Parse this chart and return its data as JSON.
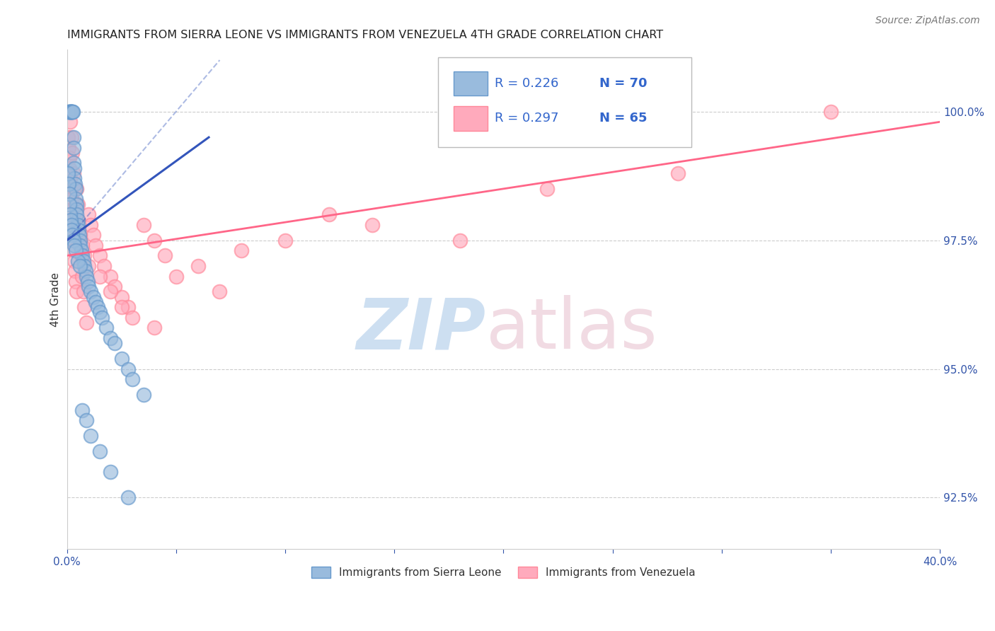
{
  "title": "IMMIGRANTS FROM SIERRA LEONE VS IMMIGRANTS FROM VENEZUELA 4TH GRADE CORRELATION CHART",
  "source": "Source: ZipAtlas.com",
  "ylabel": "4th Grade",
  "yticks": [
    92.5,
    95.0,
    97.5,
    100.0
  ],
  "ytick_labels": [
    "92.5%",
    "95.0%",
    "97.5%",
    "100.0%"
  ],
  "xlim": [
    0.0,
    40.0
  ],
  "ylim": [
    91.5,
    101.2
  ],
  "blue_color": "#99BBDD",
  "pink_color": "#FFAABC",
  "blue_edge_color": "#6699CC",
  "pink_edge_color": "#FF8899",
  "blue_line_color": "#3355BB",
  "pink_line_color": "#FF6688",
  "dashed_line_color": "#AAAACC",
  "legend_R_color": "#3366CC",
  "legend_N_color": "#3366CC",
  "watermark_zip_color": "#C8DCF0",
  "watermark_atlas_color": "#F0D8E0",
  "blue_scatter_x": [
    0.05,
    0.1,
    0.12,
    0.15,
    0.15,
    0.18,
    0.2,
    0.2,
    0.22,
    0.25,
    0.25,
    0.28,
    0.3,
    0.3,
    0.32,
    0.35,
    0.35,
    0.38,
    0.4,
    0.4,
    0.42,
    0.45,
    0.45,
    0.5,
    0.5,
    0.52,
    0.55,
    0.6,
    0.6,
    0.65,
    0.7,
    0.75,
    0.8,
    0.85,
    0.9,
    0.95,
    1.0,
    1.1,
    1.2,
    1.3,
    1.4,
    1.5,
    1.6,
    1.8,
    2.0,
    2.2,
    2.5,
    2.8,
    3.0,
    3.5,
    0.05,
    0.08,
    0.1,
    0.12,
    0.15,
    0.18,
    0.2,
    0.22,
    0.25,
    0.3,
    0.35,
    0.4,
    0.5,
    0.6,
    0.7,
    0.9,
    1.1,
    1.5,
    2.0,
    2.8
  ],
  "blue_scatter_y": [
    100.0,
    100.0,
    100.0,
    100.0,
    100.0,
    100.0,
    100.0,
    100.0,
    100.0,
    100.0,
    100.0,
    100.0,
    99.5,
    99.3,
    99.0,
    98.9,
    98.7,
    98.6,
    98.5,
    98.3,
    98.2,
    98.1,
    98.0,
    97.9,
    97.8,
    97.7,
    97.6,
    97.5,
    97.4,
    97.3,
    97.2,
    97.1,
    97.0,
    96.9,
    96.8,
    96.7,
    96.6,
    96.5,
    96.4,
    96.3,
    96.2,
    96.1,
    96.0,
    95.8,
    95.6,
    95.5,
    95.2,
    95.0,
    94.8,
    94.5,
    98.8,
    98.6,
    98.4,
    98.2,
    98.0,
    97.9,
    97.8,
    97.7,
    97.6,
    97.5,
    97.4,
    97.3,
    97.1,
    97.0,
    94.2,
    94.0,
    93.7,
    93.4,
    93.0,
    92.5
  ],
  "pink_scatter_x": [
    0.05,
    0.08,
    0.1,
    0.12,
    0.15,
    0.18,
    0.2,
    0.22,
    0.25,
    0.28,
    0.3,
    0.32,
    0.35,
    0.38,
    0.4,
    0.42,
    0.45,
    0.5,
    0.55,
    0.6,
    0.65,
    0.7,
    0.75,
    0.8,
    0.9,
    1.0,
    1.1,
    1.2,
    1.3,
    1.5,
    1.7,
    2.0,
    2.2,
    2.5,
    2.8,
    3.0,
    3.5,
    4.0,
    4.5,
    5.0,
    6.0,
    7.0,
    8.0,
    10.0,
    12.0,
    14.0,
    18.0,
    22.0,
    28.0,
    35.0,
    0.15,
    0.2,
    0.25,
    0.3,
    0.35,
    0.4,
    0.5,
    0.6,
    0.7,
    0.8,
    1.0,
    1.5,
    2.0,
    2.5,
    4.0
  ],
  "pink_scatter_y": [
    99.5,
    99.3,
    99.1,
    98.9,
    98.7,
    98.5,
    98.3,
    98.1,
    97.9,
    97.7,
    97.5,
    97.3,
    97.1,
    96.9,
    96.7,
    96.5,
    98.5,
    98.2,
    97.8,
    97.5,
    97.2,
    96.8,
    96.5,
    96.2,
    95.9,
    98.0,
    97.8,
    97.6,
    97.4,
    97.2,
    97.0,
    96.8,
    96.6,
    96.4,
    96.2,
    96.0,
    97.8,
    97.5,
    97.2,
    96.8,
    97.0,
    96.5,
    97.3,
    97.5,
    98.0,
    97.8,
    97.5,
    98.5,
    98.8,
    100.0,
    99.8,
    99.5,
    99.2,
    98.8,
    98.5,
    98.2,
    97.9,
    97.6,
    97.4,
    97.2,
    97.0,
    96.8,
    96.5,
    96.2,
    95.8
  ],
  "blue_line_x0": 0.0,
  "blue_line_x1": 6.5,
  "blue_line_y0": 97.5,
  "blue_line_y1": 99.5,
  "pink_line_x0": 0.0,
  "pink_line_x1": 40.0,
  "pink_line_y0": 97.2,
  "pink_line_y1": 99.8,
  "dashed_x0": 0.0,
  "dashed_x1": 7.0,
  "dashed_y0": 97.5,
  "dashed_y1": 101.0
}
